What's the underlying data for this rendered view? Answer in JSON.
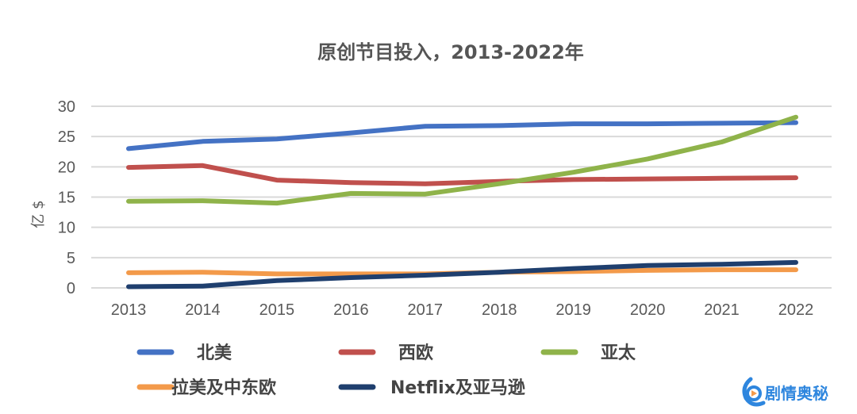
{
  "chart_data": {
    "type": "line",
    "title": "原创节目投入，2013-2022年",
    "xlabel": "",
    "ylabel": "亿 $",
    "ylim": [
      0,
      30
    ],
    "yticks": [
      0,
      5,
      10,
      15,
      20,
      25,
      30
    ],
    "grid": true,
    "legend_position": "bottom",
    "x": [
      "2013",
      "2014",
      "2015",
      "2016",
      "2017",
      "2018",
      "2019",
      "2020",
      "2021",
      "2022"
    ],
    "series": [
      {
        "name": "北美",
        "color": "#4472c4",
        "values": [
          23.0,
          24.2,
          24.6,
          25.6,
          26.7,
          26.8,
          27.1,
          27.1,
          27.2,
          27.3
        ]
      },
      {
        "name": "西欧",
        "color": "#c0504d",
        "values": [
          19.9,
          20.2,
          17.8,
          17.4,
          17.2,
          17.6,
          17.9,
          18.0,
          18.1,
          18.2
        ]
      },
      {
        "name": "亚太",
        "color": "#8fb34a",
        "values": [
          14.3,
          14.4,
          14.0,
          15.6,
          15.5,
          17.2,
          19.1,
          21.3,
          24.1,
          28.2
        ]
      },
      {
        "name": "拉美及中东欧",
        "color": "#f39a4a",
        "values": [
          2.5,
          2.6,
          2.3,
          2.3,
          2.3,
          2.6,
          2.7,
          2.9,
          3.0,
          3.0
        ]
      },
      {
        "name": "Netflix及亚马逊",
        "color": "#1f3f6e",
        "values": [
          0.2,
          0.3,
          1.2,
          1.7,
          2.1,
          2.6,
          3.2,
          3.7,
          3.9,
          4.2
        ]
      }
    ]
  },
  "watermark": {
    "text": "剧情奥秘",
    "color": "#2e86de"
  }
}
